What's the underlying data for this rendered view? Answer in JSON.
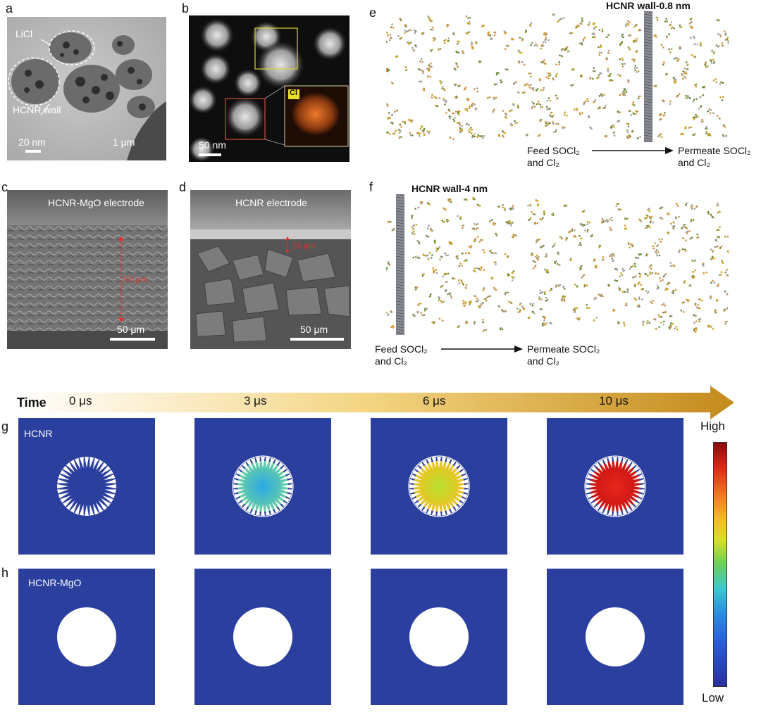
{
  "panel_labels": {
    "a": "a",
    "b": "b",
    "c": "c",
    "d": "d",
    "e": "e",
    "f": "f",
    "g": "g",
    "h": "h"
  },
  "panel_a": {
    "licl": "LiCl",
    "hcnr_wall": "HCNR wall",
    "scale_small": "20 nm",
    "scale_large": "1 μm"
  },
  "panel_b": {
    "cl": "Cl",
    "scale": "50 nm"
  },
  "panel_c": {
    "title": "HCNR-MgO electrode",
    "thickness": "90 μm",
    "scale": "50 μm"
  },
  "panel_d": {
    "title": "HCNR electrode",
    "thickness": "15 μm",
    "scale": "50 μm"
  },
  "panel_e": {
    "title": "HCNR wall-0.8 nm",
    "feed_line1": "Feed SOCl₂",
    "feed_line2": "and Cl₂",
    "perm_line1": "Permeate SOCl₂",
    "perm_line2": "and Cl₂"
  },
  "panel_f": {
    "title": "HCNR wall-4 nm",
    "feed_line1": "Feed SOCl₂",
    "feed_line2": "and Cl₂",
    "perm_line1": "Permeate SOCl₂",
    "perm_line2": "and Cl₂"
  },
  "timeline": {
    "label": "Time",
    "times": [
      "0 μs",
      "3 μs",
      "6 μs",
      "10 μs"
    ]
  },
  "rows": {
    "g": "HCNR",
    "h": "HCNR-MgO"
  },
  "colorbar": {
    "high": "High",
    "low": "Low"
  },
  "colors": {
    "sim_background": "#2b3f9e",
    "arrow_start": "#fdf6e3",
    "arrow_end": "#c8921e",
    "hot": "#9b1010"
  }
}
